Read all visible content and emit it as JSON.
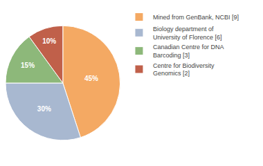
{
  "chart_data": {
    "type": "pie",
    "categories": [
      "Mined from GenBank, NCBI [9]",
      "Biology department of\nUniversity of Florence [6]",
      "Canadian Centre for DNA\nBarcoding [3]",
      "Centre for Biodiversity\nGenomics [2]"
    ],
    "values": [
      45,
      30,
      15,
      10
    ],
    "value_labels": [
      "45%",
      "30%",
      "15%",
      "10%"
    ],
    "colors": [
      "#F4A963",
      "#A8B8D0",
      "#8DB87A",
      "#C0604A"
    ],
    "data_labels": true,
    "legend": "right"
  }
}
